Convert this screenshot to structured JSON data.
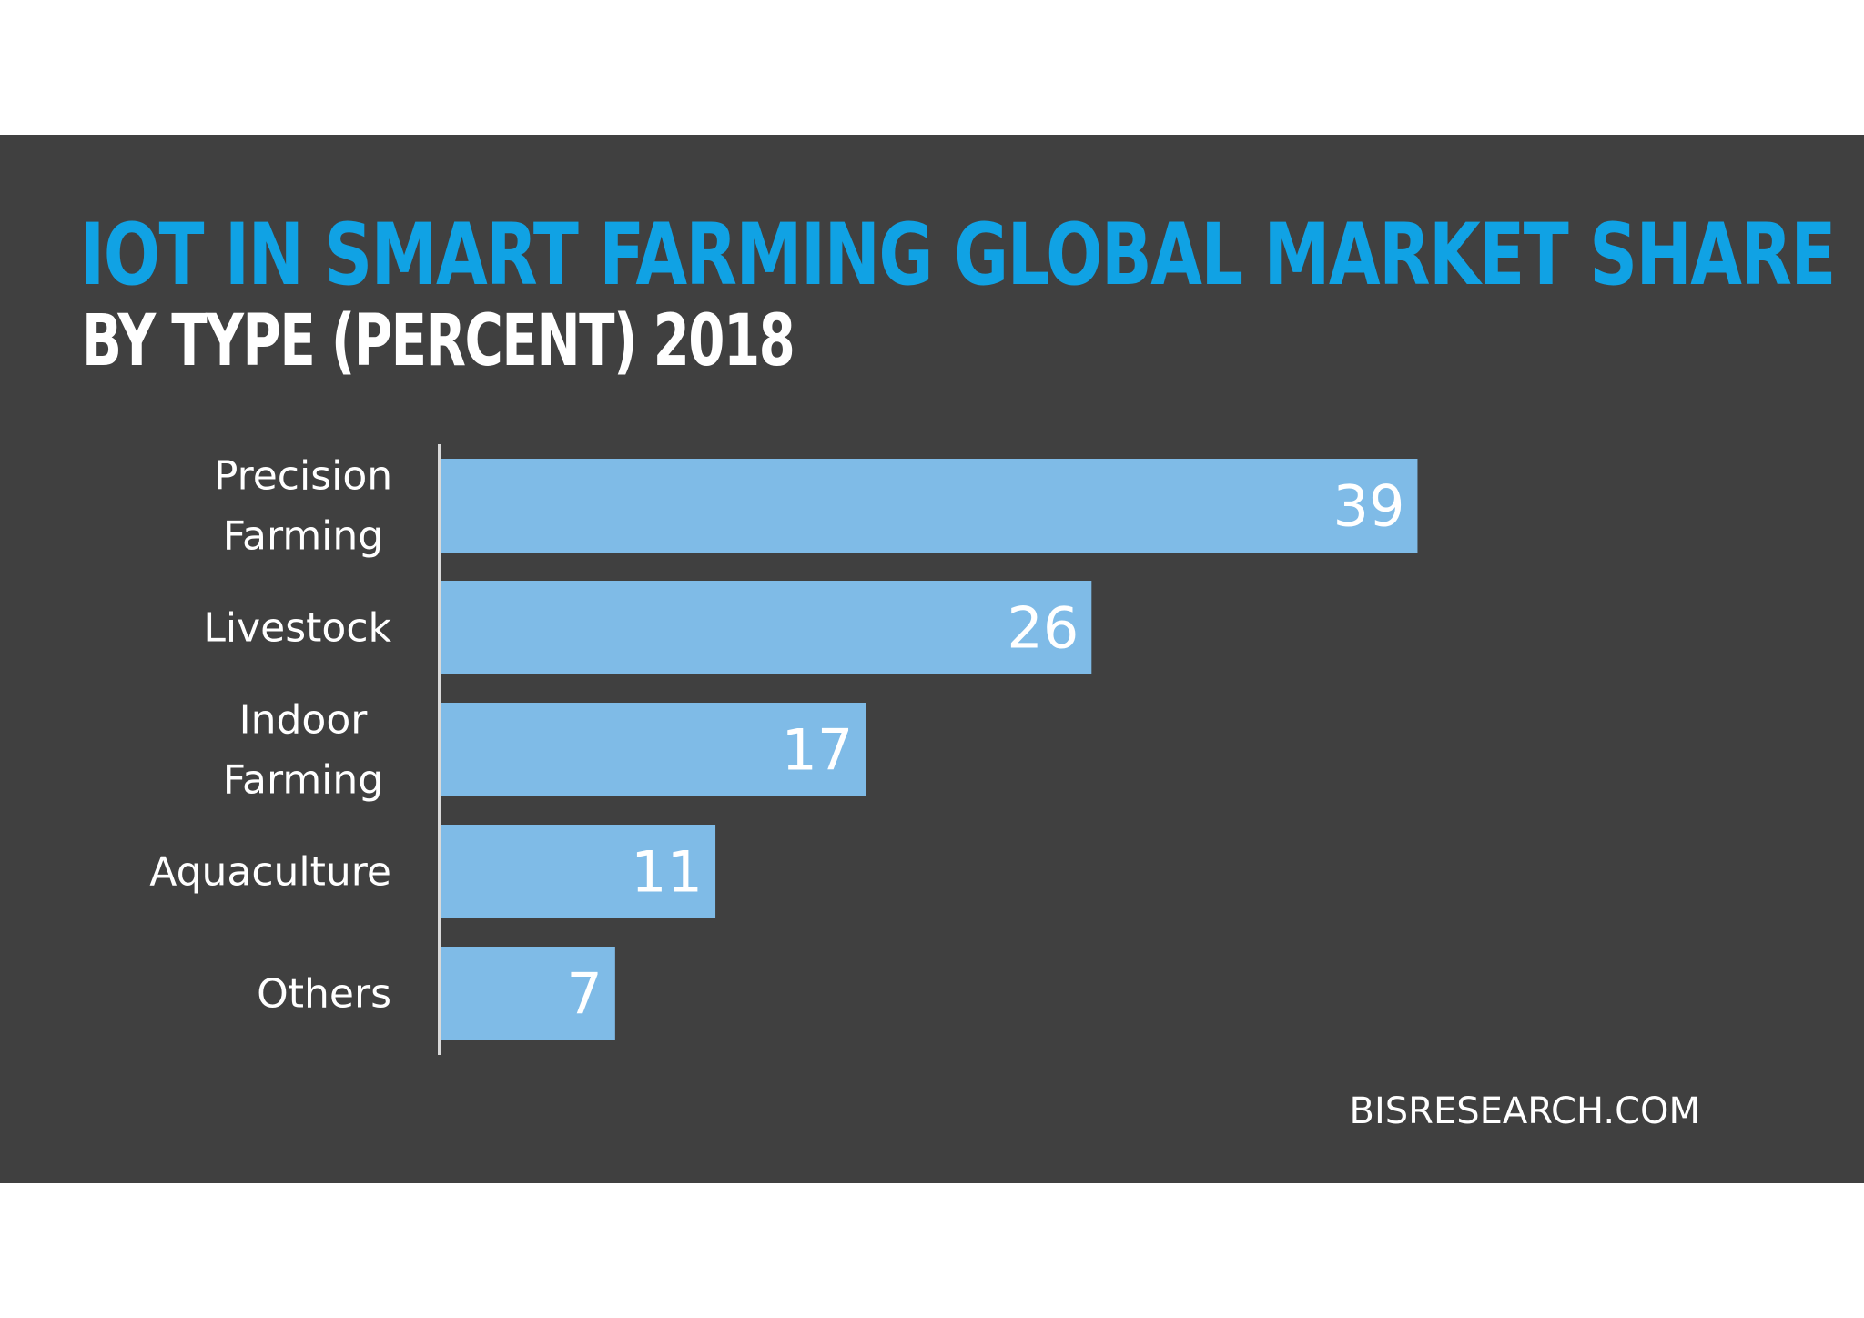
{
  "chart_data": {
    "type": "bar",
    "orientation": "horizontal",
    "title": "IOT IN SMART FARMING GLOBAL MARKET SHARE",
    "subtitle": "BY TYPE (PERCENT) 2018",
    "categories": [
      [
        "Precision",
        "Farming"
      ],
      [
        "Livestock"
      ],
      [
        "Indoor",
        "Farming"
      ],
      [
        "Aquaculture"
      ],
      [
        "Others"
      ]
    ],
    "values": [
      39,
      26,
      17,
      11,
      7
    ],
    "xlim": [
      0,
      45
    ],
    "grid": false,
    "legend": "none",
    "colors": {
      "background": "#404040",
      "title": "#10a2e4",
      "subtitle": "#ffffff",
      "bar": "#7fbbe7",
      "axis": "#d9d9d9",
      "text": "#ffffff"
    }
  },
  "source": "BISRESEARCH.COM"
}
